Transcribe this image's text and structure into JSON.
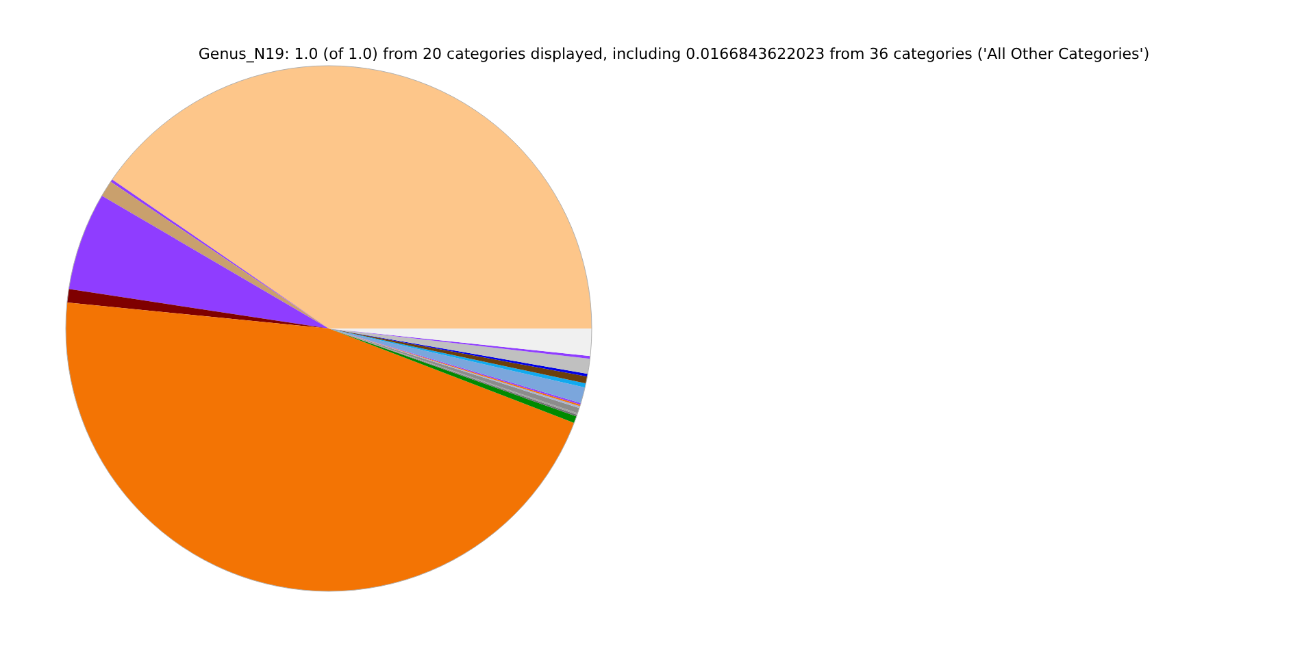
{
  "chart_data": {
    "type": "pie",
    "title": "Genus_N19: 1.0 (of 1.0) from 20 categories displayed, including 0.0166843622023 from 36 categories ('All Other Categories')",
    "categories": [
      null,
      null,
      null,
      null,
      null,
      null,
      null,
      null,
      null,
      null,
      null,
      null,
      null,
      null,
      null,
      null,
      null,
      null,
      null,
      null
    ],
    "values": [
      40.4,
      0.17,
      1.0,
      6.03,
      0.82,
      45.73,
      0.42,
      0.11,
      0.1,
      0.33,
      0.11,
      0.1,
      0.1,
      0.97,
      0.26,
      0.42,
      0.17,
      0.92,
      0.17,
      1.67
    ],
    "colors": [
      "#fdc68a",
      "#8f3dff",
      "#c9a06d",
      "#8f3dff",
      "#7f0000",
      "#f37404",
      "#008a00",
      "#707070",
      "#a0a0a0",
      "#8c8c8c",
      "#a8b4d0",
      "#f37404",
      "#8f3dff",
      "#7ba6dc",
      "#11a9ee",
      "#6b3f0b",
      "#0000e6",
      "#c0c0c0",
      "#8f3dff",
      "#f0f0f0"
    ]
  }
}
